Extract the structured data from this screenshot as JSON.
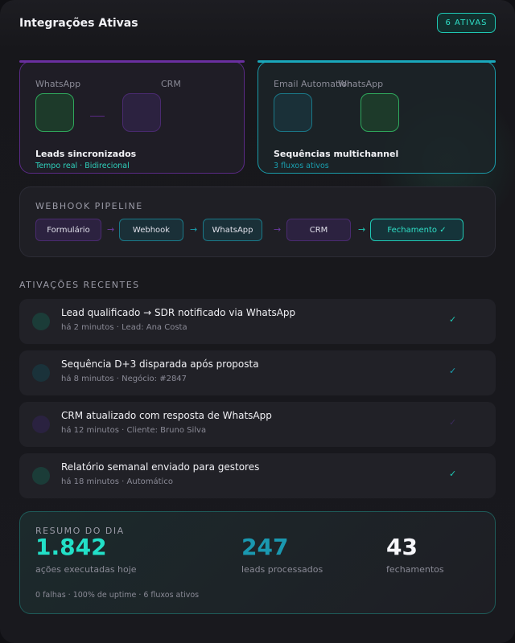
{
  "header": {
    "title": "Integrações Ativas",
    "badge": "6 ATIVAS"
  },
  "integrations": [
    {
      "from": "WhatsApp",
      "to": "CRM",
      "title": "Leads sincronizados",
      "subtitle": "Tempo real · Bidirecional"
    },
    {
      "from": "Email Automation",
      "to": "WhatsApp",
      "title": "Sequências multichannel",
      "subtitle": "3 fluxos ativos"
    }
  ],
  "pipeline": {
    "title": "WEBHOOK PIPELINE",
    "steps": [
      "Formulário",
      "Webhook",
      "WhatsApp",
      "CRM",
      "Fechamento ✓"
    ]
  },
  "activations": {
    "title": "ATIVAÇÕES RECENTES",
    "items": [
      {
        "title": "Lead qualificado → SDR notificado via WhatsApp",
        "meta": "há 2 minutos · Lead: Ana Costa"
      },
      {
        "title": "Sequência D+3 disparada após proposta",
        "meta": "há 8 minutos · Negócio: #2847"
      },
      {
        "title": "CRM atualizado com resposta de WhatsApp",
        "meta": "há 12 minutos · Cliente: Bruno Silva"
      },
      {
        "title": "Relatório semanal enviado para gestores",
        "meta": "há 18 minutos · Automático"
      }
    ]
  },
  "summary": {
    "title": "RESUMO DO DIA",
    "stats": [
      {
        "value": "1.842",
        "label": "ações executadas hoje"
      },
      {
        "value": "247",
        "label": "leads processados"
      },
      {
        "value": "43",
        "label": "fechamentos"
      }
    ],
    "footer": "0 falhas · 100% de uptime · 6 fluxos ativos"
  }
}
